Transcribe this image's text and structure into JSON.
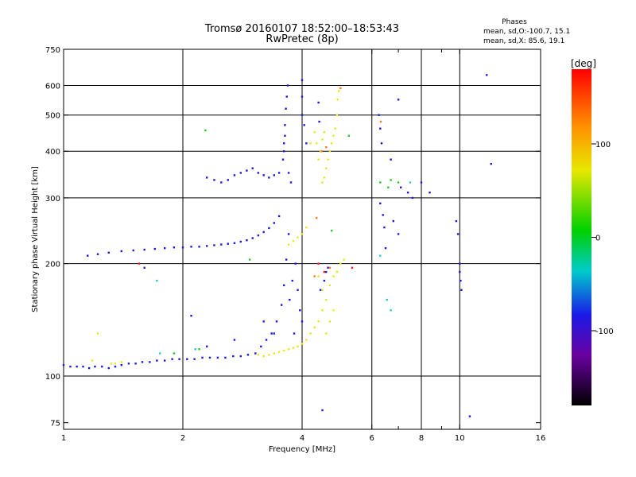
{
  "header": {
    "title_line1": "Tromsø 20160107 18:52:00–18:53:43",
    "title_line2": "RwPretec (8p)",
    "phases_title": "Phases",
    "phases_o": "mean, sd,O:-100.7, 15.1",
    "phases_x": "mean, sd,X:  85.6, 19.1"
  },
  "colorbar": {
    "label": "[deg]",
    "ticks": [
      {
        "value": 100,
        "label": "100"
      },
      {
        "value": 0,
        "label": "0"
      },
      {
        "value": -100,
        "label": "-100"
      }
    ],
    "range": [
      -180,
      180
    ]
  },
  "chart_data": {
    "type": "scatter",
    "xlabel": "Frequency [MHz]",
    "ylabel": "Stationary phase Virtual Height [km]",
    "x_scale": "log",
    "y_scale": "log",
    "xlim": [
      1,
      16
    ],
    "ylim": [
      72,
      750
    ],
    "x_ticks": [
      {
        "value": 1,
        "label": "1"
      },
      {
        "value": 2,
        "label": "2"
      },
      {
        "value": 4,
        "label": "4"
      },
      {
        "value": 6,
        "label": "6"
      },
      {
        "value": 8,
        "label": "8"
      },
      {
        "value": 10,
        "label": "10"
      },
      {
        "value": 16,
        "label": "16"
      }
    ],
    "x_minor_ticks": [
      7,
      9
    ],
    "x_gridlines": [
      2,
      4,
      6,
      8,
      10
    ],
    "y_ticks": [
      {
        "value": 75,
        "label": "75"
      },
      {
        "value": 100,
        "label": "100"
      },
      {
        "value": 200,
        "label": "200"
      },
      {
        "value": 300,
        "label": "300"
      },
      {
        "value": 400,
        "label": "400"
      },
      {
        "value": 500,
        "label": "500"
      },
      {
        "value": 600,
        "label": "600"
      },
      {
        "value": 750,
        "label": "750"
      }
    ],
    "y_gridlines": [
      100,
      200,
      300,
      400,
      500,
      600
    ],
    "grid": true,
    "series": [
      {
        "color": "#1a1ad8",
        "points": [
          [
            1.0,
            107
          ],
          [
            1.04,
            106
          ],
          [
            1.08,
            106
          ],
          [
            1.12,
            106
          ],
          [
            1.16,
            105
          ],
          [
            1.2,
            106
          ],
          [
            1.25,
            106
          ],
          [
            1.3,
            105
          ],
          [
            1.35,
            106
          ],
          [
            1.4,
            107
          ],
          [
            1.46,
            108
          ],
          [
            1.52,
            108
          ],
          [
            1.58,
            109
          ],
          [
            1.65,
            109
          ],
          [
            1.72,
            110
          ],
          [
            1.8,
            110
          ],
          [
            1.88,
            111
          ],
          [
            1.96,
            111
          ],
          [
            2.05,
            111
          ],
          [
            2.14,
            111
          ],
          [
            2.24,
            112
          ],
          [
            2.34,
            112
          ],
          [
            2.45,
            112
          ],
          [
            2.56,
            112
          ],
          [
            2.68,
            113
          ],
          [
            2.8,
            113
          ],
          [
            2.92,
            114
          ],
          [
            3.05,
            115
          ],
          [
            3.15,
            120
          ],
          [
            3.25,
            125
          ],
          [
            3.35,
            130
          ],
          [
            3.45,
            140
          ],
          [
            3.55,
            155
          ],
          [
            3.6,
            175
          ],
          [
            3.65,
            205
          ],
          [
            3.7,
            240
          ],
          [
            1.15,
            210
          ],
          [
            1.22,
            212
          ],
          [
            1.3,
            214
          ],
          [
            1.4,
            216
          ],
          [
            1.5,
            217
          ],
          [
            1.6,
            218
          ],
          [
            1.7,
            219
          ],
          [
            1.8,
            220
          ],
          [
            1.9,
            221
          ],
          [
            2.0,
            221
          ],
          [
            2.1,
            222
          ],
          [
            2.2,
            222
          ],
          [
            2.3,
            223
          ],
          [
            2.4,
            224
          ],
          [
            2.5,
            225
          ],
          [
            2.6,
            226
          ],
          [
            2.7,
            227
          ],
          [
            2.8,
            229
          ],
          [
            2.9,
            231
          ],
          [
            3.0,
            234
          ],
          [
            3.1,
            238
          ],
          [
            3.2,
            243
          ],
          [
            3.3,
            249
          ],
          [
            3.4,
            257
          ],
          [
            3.5,
            268
          ],
          [
            3.58,
            380
          ],
          [
            3.6,
            420
          ],
          [
            3.62,
            470
          ],
          [
            3.64,
            520
          ],
          [
            3.66,
            560
          ],
          [
            3.62,
            440
          ],
          [
            3.6,
            400
          ],
          [
            3.7,
            350
          ],
          [
            3.75,
            330
          ],
          [
            3.68,
            600
          ],
          [
            3.85,
            200
          ],
          [
            3.9,
            170
          ],
          [
            3.95,
            150
          ],
          [
            4.0,
            140
          ],
          [
            3.72,
            160
          ],
          [
            3.78,
            180
          ],
          [
            3.82,
            130
          ],
          [
            2.3,
            340
          ],
          [
            2.4,
            335
          ],
          [
            2.5,
            330
          ],
          [
            2.6,
            335
          ],
          [
            2.7,
            345
          ],
          [
            2.8,
            350
          ],
          [
            2.9,
            355
          ],
          [
            3.0,
            360
          ],
          [
            3.1,
            350
          ],
          [
            3.2,
            345
          ],
          [
            3.3,
            340
          ],
          [
            3.4,
            345
          ],
          [
            3.5,
            350
          ],
          [
            4.0,
            620
          ],
          [
            4.0,
            560
          ],
          [
            4.0,
            500
          ],
          [
            4.05,
            470
          ],
          [
            4.1,
            420
          ],
          [
            4.4,
            540
          ],
          [
            4.42,
            480
          ],
          [
            4.45,
            170
          ],
          [
            4.55,
            180
          ],
          [
            4.6,
            190
          ],
          [
            4.65,
            195
          ],
          [
            6.25,
            500
          ],
          [
            6.3,
            460
          ],
          [
            6.35,
            420
          ],
          [
            6.7,
            380
          ],
          [
            6.4,
            270
          ],
          [
            6.45,
            250
          ],
          [
            6.5,
            220
          ],
          [
            6.3,
            290
          ],
          [
            6.8,
            260
          ],
          [
            7.0,
            240
          ],
          [
            7.1,
            320
          ],
          [
            7.4,
            310
          ],
          [
            7.6,
            300
          ],
          [
            8.0,
            330
          ],
          [
            8.4,
            310
          ],
          [
            9.8,
            260
          ],
          [
            9.9,
            240
          ],
          [
            10.0,
            200
          ],
          [
            10.0,
            190
          ],
          [
            10.05,
            180
          ],
          [
            10.1,
            170
          ],
          [
            11.7,
            640
          ],
          [
            12.0,
            370
          ],
          [
            1.6,
            195
          ],
          [
            2.1,
            145
          ],
          [
            2.3,
            120
          ],
          [
            2.7,
            125
          ],
          [
            3.2,
            140
          ],
          [
            3.4,
            130
          ],
          [
            4.5,
            81
          ],
          [
            10.6,
            78
          ],
          [
            7.0,
            550
          ]
        ]
      },
      {
        "color": "#e8e81a",
        "points": [
          [
            3.1,
            114
          ],
          [
            3.2,
            113
          ],
          [
            3.3,
            114
          ],
          [
            3.4,
            115
          ],
          [
            3.5,
            116
          ],
          [
            3.6,
            117
          ],
          [
            3.7,
            118
          ],
          [
            3.8,
            119
          ],
          [
            3.9,
            120
          ],
          [
            4.0,
            122
          ],
          [
            4.1,
            125
          ],
          [
            4.2,
            130
          ],
          [
            4.3,
            135
          ],
          [
            4.4,
            140
          ],
          [
            4.5,
            150
          ],
          [
            4.6,
            160
          ],
          [
            4.7,
            175
          ],
          [
            4.8,
            185
          ],
          [
            4.9,
            190
          ],
          [
            5.0,
            200
          ],
          [
            5.1,
            205
          ],
          [
            4.5,
            330
          ],
          [
            4.55,
            340
          ],
          [
            4.6,
            360
          ],
          [
            4.65,
            380
          ],
          [
            4.7,
            400
          ],
          [
            4.75,
            420
          ],
          [
            4.8,
            440
          ],
          [
            4.85,
            460
          ],
          [
            4.9,
            500
          ],
          [
            4.92,
            550
          ],
          [
            4.95,
            580
          ],
          [
            4.4,
            380
          ],
          [
            4.45,
            400
          ],
          [
            4.5,
            430
          ],
          [
            4.55,
            450
          ],
          [
            4.35,
            420
          ],
          [
            4.2,
            420
          ],
          [
            4.3,
            450
          ],
          [
            4.1,
            250
          ],
          [
            4.0,
            240
          ],
          [
            3.9,
            235
          ],
          [
            3.8,
            230
          ],
          [
            3.7,
            225
          ],
          [
            4.6,
            130
          ],
          [
            4.7,
            140
          ],
          [
            4.8,
            150
          ],
          [
            4.5,
            170
          ],
          [
            4.4,
            185
          ],
          [
            1.35,
            108
          ],
          [
            1.4,
            109
          ],
          [
            1.18,
            110
          ],
          [
            1.22,
            130
          ],
          [
            1.32,
            108
          ]
        ]
      },
      {
        "color": "#ff7a1a",
        "points": [
          [
            4.48,
            400
          ],
          [
            4.6,
            410
          ],
          [
            4.35,
            265
          ],
          [
            4.3,
            185
          ],
          [
            4.7,
            195
          ],
          [
            5.0,
            590
          ],
          [
            6.32,
            480
          ]
        ]
      },
      {
        "color": "#ff1a1a",
        "points": [
          [
            4.4,
            200
          ],
          [
            4.55,
            190
          ],
          [
            5.35,
            195
          ],
          [
            1.55,
            200
          ]
        ]
      },
      {
        "color": "#22cc22",
        "points": [
          [
            1.9,
            115
          ],
          [
            2.2,
            118
          ],
          [
            2.28,
            455
          ],
          [
            2.95,
            205
          ],
          [
            5.25,
            440
          ],
          [
            6.3,
            330
          ],
          [
            6.6,
            320
          ],
          [
            6.7,
            335
          ],
          [
            4.75,
            245
          ],
          [
            7.0,
            330
          ]
        ]
      },
      {
        "color": "#22cccc",
        "points": [
          [
            1.75,
            115
          ],
          [
            1.72,
            180
          ],
          [
            6.55,
            160
          ],
          [
            6.7,
            150
          ],
          [
            7.5,
            330
          ],
          [
            2.15,
            118
          ],
          [
            6.3,
            210
          ]
        ]
      }
    ]
  }
}
